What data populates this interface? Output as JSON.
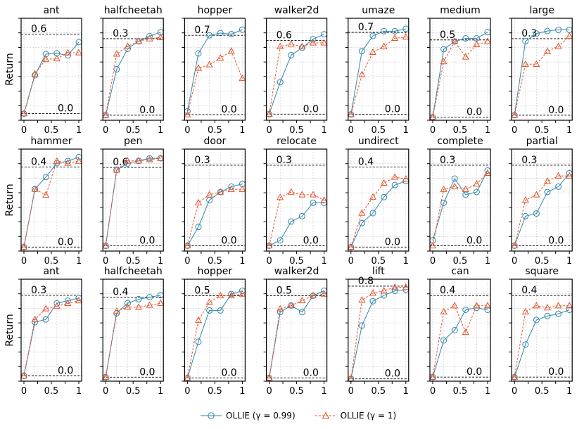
{
  "colors": {
    "blue": "#2e86ab",
    "orange": "#e8532a"
  },
  "series_names": [
    "OLLIE (γ = 0.99)",
    "OLLIE (γ = 1)"
  ],
  "ylabel": "Return",
  "chart_data": [
    {
      "type": "line",
      "title": "ant",
      "row": 0,
      "x": [
        0,
        0.2,
        0.4,
        0.6,
        0.8,
        1
      ],
      "ylim": [
        -0.05,
        0.72
      ],
      "refs": [
        0.6,
        0.0
      ],
      "ref_labels": [
        "0.6",
        "0.0"
      ],
      "series": [
        {
          "name": "OLLIE (γ = 0.99)",
          "values": [
            0.0,
            0.29,
            0.45,
            0.455,
            0.44,
            0.54
          ]
        },
        {
          "name": "OLLIE (γ = 1)",
          "values": [
            0.0,
            0.3,
            0.41,
            0.415,
            0.46,
            0.46
          ]
        }
      ]
    },
    {
      "type": "line",
      "title": "halfcheetah",
      "row": 0,
      "x": [
        0,
        0.2,
        0.4,
        0.6,
        0.8,
        1
      ],
      "ylim": [
        -0.02,
        0.38
      ],
      "refs": [
        0.3,
        0.0
      ],
      "ref_labels": [
        "0.3",
        "0.0"
      ],
      "series": [
        {
          "name": "OLLIE (γ = 0.99)",
          "values": [
            0.0,
            0.18,
            0.26,
            0.29,
            0.31,
            0.325
          ]
        },
        {
          "name": "OLLIE (γ = 1)",
          "values": [
            0.0,
            0.24,
            0.27,
            0.29,
            0.3,
            0.305
          ]
        }
      ]
    },
    {
      "type": "line",
      "title": "hopper",
      "row": 0,
      "x": [
        0,
        0.2,
        0.4,
        0.6,
        0.8,
        1
      ],
      "ylim": [
        -0.05,
        0.85
      ],
      "refs": [
        0.7,
        0.0
      ],
      "ref_labels": [
        "0.7",
        "0.0"
      ],
      "series": [
        {
          "name": "OLLIE (γ = 0.99)",
          "values": [
            0.03,
            0.54,
            0.7,
            0.72,
            0.71,
            0.75
          ]
        },
        {
          "name": "OLLIE (γ = 1)",
          "values": [
            0.0,
            0.41,
            0.44,
            0.5,
            0.56,
            0.32
          ]
        }
      ]
    },
    {
      "type": "line",
      "title": "walker2d",
      "row": 0,
      "x": [
        0,
        0.2,
        0.4,
        0.6,
        0.8,
        1
      ],
      "ylim": [
        -0.05,
        0.78
      ],
      "refs": [
        0.6,
        0.0
      ],
      "ref_labels": [
        "0.6",
        "0.0"
      ],
      "series": [
        {
          "name": "OLLIE (γ = 0.99)",
          "values": [
            0.0,
            0.26,
            0.48,
            0.54,
            0.61,
            0.65
          ]
        },
        {
          "name": "OLLIE (γ = 1)",
          "values": [
            0.0,
            0.55,
            0.57,
            0.55,
            0.58,
            0.58
          ]
        }
      ]
    },
    {
      "type": "line",
      "title": "umaze",
      "row": 0,
      "x": [
        0,
        0.2,
        0.4,
        0.6,
        0.8,
        1
      ],
      "ylim": [
        -0.05,
        0.82
      ],
      "refs": [
        0.7,
        0.0
      ],
      "ref_labels": [
        "0.7",
        "0.0"
      ],
      "series": [
        {
          "name": "OLLIE (γ = 0.99)",
          "values": [
            0.0,
            0.54,
            0.67,
            0.71,
            0.71,
            0.73
          ]
        },
        {
          "name": "OLLIE (γ = 1)",
          "values": [
            0.0,
            0.34,
            0.53,
            0.58,
            0.65,
            0.66
          ]
        }
      ]
    },
    {
      "type": "line",
      "title": "medium",
      "row": 0,
      "x": [
        0,
        0.2,
        0.4,
        0.6,
        0.8,
        1
      ],
      "ylim": [
        -0.02,
        0.64
      ],
      "refs": [
        0.5,
        0.0
      ],
      "ref_labels": [
        "0.5",
        "0.0"
      ],
      "series": [
        {
          "name": "OLLIE (γ = 0.99)",
          "values": [
            0.0,
            0.44,
            0.49,
            0.51,
            0.51,
            0.55
          ]
        },
        {
          "name": "OLLIE (γ = 1)",
          "values": [
            0.0,
            0.36,
            0.49,
            0.39,
            0.47,
            0.49
          ]
        }
      ]
    },
    {
      "type": "line",
      "title": "large",
      "row": 0,
      "x": [
        0,
        0.2,
        0.4,
        0.6,
        0.8,
        1
      ],
      "ylim": [
        -0.02,
        0.38
      ],
      "refs": [
        0.3,
        0.0
      ],
      "ref_labels": [
        "0.3",
        "0.0"
      ],
      "series": [
        {
          "name": "OLLIE (γ = 0.99)",
          "values": [
            0.0,
            0.29,
            0.32,
            0.33,
            0.335,
            0.335
          ]
        },
        {
          "name": "OLLIE (γ = 1)",
          "values": [
            0.0,
            0.2,
            0.2,
            0.25,
            0.27,
            0.31
          ]
        }
      ]
    },
    {
      "type": "line",
      "title": "hammer",
      "row": 1,
      "x": [
        0,
        0.2,
        0.4,
        0.6,
        0.8,
        1
      ],
      "ylim": [
        -0.02,
        0.49
      ],
      "refs": [
        0.4,
        0.0
      ],
      "ref_labels": [
        "0.4",
        "0.0"
      ],
      "series": [
        {
          "name": "OLLIE (γ = 0.99)",
          "values": [
            0.0,
            0.29,
            0.35,
            0.42,
            0.43,
            0.45
          ]
        },
        {
          "name": "OLLIE (γ = 1)",
          "values": [
            0.0,
            0.29,
            0.26,
            0.43,
            0.42,
            0.43
          ]
        }
      ]
    },
    {
      "type": "line",
      "title": "pen",
      "row": 1,
      "x": [
        0,
        0.2,
        0.4,
        0.6,
        0.8,
        1
      ],
      "ylim": [
        -0.04,
        0.74
      ],
      "refs": [
        0.6,
        0.0
      ],
      "ref_labels": [
        "0.6",
        "0.0"
      ],
      "series": [
        {
          "name": "OLLIE (γ = 0.99)",
          "values": [
            0.0,
            0.58,
            0.63,
            0.65,
            0.67,
            0.67
          ]
        },
        {
          "name": "OLLIE (γ = 1)",
          "values": [
            0.0,
            0.58,
            0.65,
            0.65,
            0.66,
            0.67
          ]
        }
      ]
    },
    {
      "type": "line",
      "title": "door",
      "row": 1,
      "x": [
        0,
        0.2,
        0.4,
        0.6,
        0.8,
        1
      ],
      "ylim": [
        -0.02,
        0.36
      ],
      "refs": [
        0.3,
        0.0
      ],
      "ref_labels": [
        "0.3",
        "0.0"
      ],
      "series": [
        {
          "name": "OLLIE (γ = 0.99)",
          "values": [
            0.0,
            0.07,
            0.17,
            0.2,
            0.22,
            0.23
          ]
        },
        {
          "name": "OLLIE (γ = 1)",
          "values": [
            0.0,
            0.16,
            0.19,
            0.2,
            0.21,
            0.21
          ]
        }
      ]
    },
    {
      "type": "line",
      "title": "relocate",
      "row": 1,
      "x": [
        0,
        0.2,
        0.4,
        0.6,
        0.8,
        1
      ],
      "ylim": [
        -0.02,
        0.36
      ],
      "refs": [
        0.3,
        0.0
      ],
      "ref_labels": [
        "0.3",
        "0.0"
      ],
      "series": [
        {
          "name": "OLLIE (γ = 0.99)",
          "values": [
            0.0,
            0.02,
            0.09,
            0.11,
            0.16,
            0.16
          ]
        },
        {
          "name": "OLLIE (γ = 1)",
          "values": [
            0.0,
            0.18,
            0.2,
            0.19,
            0.19,
            0.17
          ]
        }
      ]
    },
    {
      "type": "line",
      "title": "undirect",
      "row": 1,
      "x": [
        0,
        0.2,
        0.4,
        0.6,
        0.8,
        1
      ],
      "ylim": [
        -0.02,
        0.49
      ],
      "refs": [
        0.4,
        0.0
      ],
      "ref_labels": [
        "0.4",
        "0.0"
      ],
      "series": [
        {
          "name": "OLLIE (γ = 0.99)",
          "values": [
            0.0,
            0.12,
            0.17,
            0.25,
            0.31,
            0.33
          ]
        },
        {
          "name": "OLLIE (γ = 1)",
          "values": [
            0.0,
            0.17,
            0.25,
            0.32,
            0.35,
            0.34
          ]
        }
      ]
    },
    {
      "type": "line",
      "title": "complete",
      "row": 1,
      "x": [
        0,
        0.2,
        0.4,
        0.6,
        0.8,
        1
      ],
      "ylim": [
        -0.02,
        0.36
      ],
      "refs": [
        0.3,
        0.0
      ],
      "ref_labels": [
        "0.3",
        "0.0"
      ],
      "series": [
        {
          "name": "OLLIE (γ = 0.99)",
          "values": [
            0.02,
            0.16,
            0.25,
            0.19,
            0.2,
            0.28
          ]
        },
        {
          "name": "OLLIE (γ = 1)",
          "values": [
            0.0,
            0.21,
            0.22,
            0.21,
            0.23,
            0.27
          ]
        }
      ]
    },
    {
      "type": "line",
      "title": "partial",
      "row": 1,
      "x": [
        0,
        0.2,
        0.4,
        0.6,
        0.8,
        1
      ],
      "ylim": [
        -0.02,
        0.36
      ],
      "refs": [
        0.3,
        0.0
      ],
      "ref_labels": [
        "0.3",
        "0.0"
      ],
      "series": [
        {
          "name": "OLLIE (γ = 0.99)",
          "values": [
            0.0,
            0.11,
            0.12,
            0.2,
            0.22,
            0.27
          ]
        },
        {
          "name": "OLLIE (γ = 1)",
          "values": [
            0.0,
            0.17,
            0.19,
            0.24,
            0.26,
            0.26
          ]
        }
      ]
    },
    {
      "type": "line",
      "title": "ant",
      "row": 2,
      "x": [
        0,
        0.2,
        0.4,
        0.6,
        0.8,
        1
      ],
      "ylim": [
        -0.02,
        0.36
      ],
      "refs": [
        0.3,
        0.0
      ],
      "ref_labels": [
        "0.3",
        "0.0"
      ],
      "series": [
        {
          "name": "OLLIE (γ = 0.99)",
          "values": [
            0.0,
            0.2,
            0.21,
            0.27,
            0.28,
            0.29
          ]
        },
        {
          "name": "OLLIE (γ = 1)",
          "values": [
            0.0,
            0.21,
            0.25,
            0.26,
            0.27,
            0.28
          ]
        }
      ]
    },
    {
      "type": "line",
      "title": "halfcheetah",
      "row": 2,
      "x": [
        0,
        0.2,
        0.4,
        0.6,
        0.8,
        1
      ],
      "ylim": [
        -0.02,
        0.49
      ],
      "refs": [
        0.4,
        0.0
      ],
      "ref_labels": [
        "0.4",
        "0.0"
      ],
      "series": [
        {
          "name": "OLLIE (γ = 0.99)",
          "values": [
            0.0,
            0.32,
            0.37,
            0.39,
            0.4,
            0.41
          ]
        },
        {
          "name": "OLLIE (γ = 1)",
          "values": [
            0.0,
            0.33,
            0.35,
            0.35,
            0.36,
            0.37
          ]
        }
      ]
    },
    {
      "type": "line",
      "title": "hopper",
      "row": 2,
      "x": [
        0,
        0.2,
        0.4,
        0.6,
        0.8,
        1
      ],
      "ylim": [
        -0.02,
        0.6
      ],
      "refs": [
        0.5,
        0.0
      ],
      "ref_labels": [
        "0.5",
        "0.0"
      ],
      "series": [
        {
          "name": "OLLIE (γ = 0.99)",
          "values": [
            0.0,
            0.22,
            0.41,
            0.41,
            0.51,
            0.53
          ]
        },
        {
          "name": "OLLIE (γ = 1)",
          "values": [
            0.0,
            0.35,
            0.46,
            0.5,
            0.5,
            0.51
          ]
        }
      ]
    },
    {
      "type": "line",
      "title": "walker2d",
      "row": 2,
      "x": [
        0,
        0.2,
        0.4,
        0.6,
        0.8,
        1
      ],
      "ylim": [
        -0.02,
        0.6
      ],
      "refs": [
        0.5,
        0.0
      ],
      "ref_labels": [
        "0.5",
        "0.0"
      ],
      "series": [
        {
          "name": "OLLIE (γ = 0.99)",
          "values": [
            0.0,
            0.4,
            0.44,
            0.4,
            0.5,
            0.53
          ]
        },
        {
          "name": "OLLIE (γ = 1)",
          "values": [
            0.0,
            0.42,
            0.44,
            0.47,
            0.5,
            0.51
          ]
        }
      ]
    },
    {
      "type": "line",
      "title": "lift",
      "row": 2,
      "x": [
        0,
        0.2,
        0.4,
        0.6,
        0.8,
        1
      ],
      "ylim": [
        -0.02,
        0.86
      ],
      "refs": [
        0.8,
        0.0
      ],
      "ref_labels": [
        "0.8",
        "0.0"
      ],
      "series": [
        {
          "name": "OLLIE (γ = 0.99)",
          "values": [
            0.0,
            0.46,
            0.67,
            0.72,
            0.76,
            0.77
          ]
        },
        {
          "name": "OLLIE (γ = 1)",
          "values": [
            0.0,
            0.68,
            0.74,
            0.76,
            0.79,
            0.79
          ]
        }
      ]
    },
    {
      "type": "line",
      "title": "can",
      "row": 2,
      "x": [
        0,
        0.2,
        0.4,
        0.6,
        0.8,
        1
      ],
      "ylim": [
        -0.02,
        0.48
      ],
      "refs": [
        0.4,
        0.0
      ],
      "ref_labels": [
        "0.4",
        "0.0"
      ],
      "series": [
        {
          "name": "OLLIE (γ = 0.99)",
          "values": [
            0.0,
            0.18,
            0.23,
            0.33,
            0.34,
            0.33
          ]
        },
        {
          "name": "OLLIE (γ = 1)",
          "values": [
            0.0,
            0.32,
            0.35,
            0.22,
            0.35,
            0.35
          ]
        }
      ]
    },
    {
      "type": "line",
      "title": "square",
      "row": 2,
      "x": [
        0,
        0.2,
        0.4,
        0.6,
        0.8,
        1
      ],
      "ylim": [
        -0.02,
        0.48
      ],
      "refs": [
        0.4,
        0.0
      ],
      "ref_labels": [
        "0.4",
        "0.0"
      ],
      "series": [
        {
          "name": "OLLIE (γ = 0.99)",
          "values": [
            0.0,
            0.16,
            0.28,
            0.3,
            0.31,
            0.33
          ]
        },
        {
          "name": "OLLIE (γ = 1)",
          "values": [
            0.0,
            0.32,
            0.35,
            0.34,
            0.35,
            0.35
          ]
        }
      ]
    }
  ],
  "x_tick_labels": [
    "0",
    "0.5",
    "1"
  ]
}
